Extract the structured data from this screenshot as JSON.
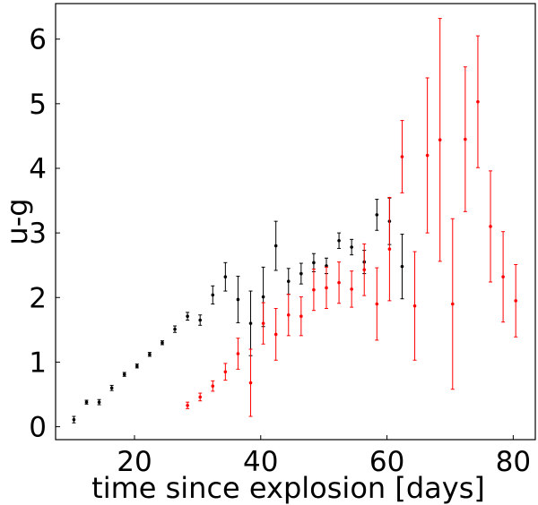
{
  "chart_data": {
    "type": "scatter",
    "xlabel": "time since explosion [days]",
    "ylabel": "u-g",
    "xlim": [
      7.5,
      83.5
    ],
    "ylim": [
      -0.2,
      6.55
    ],
    "xticks": [
      20,
      40,
      60,
      80
    ],
    "yticks": [
      0,
      1,
      2,
      3,
      4,
      5,
      6
    ],
    "grid": false,
    "series": [
      {
        "color": "#000000",
        "points": [
          {
            "x": 10.4,
            "y": 0.11,
            "err": 0.05
          },
          {
            "x": 12.4,
            "y": 0.38,
            "err": 0.03
          },
          {
            "x": 14.4,
            "y": 0.38,
            "err": 0.04
          },
          {
            "x": 16.4,
            "y": 0.6,
            "err": 0.04
          },
          {
            "x": 18.4,
            "y": 0.81,
            "err": 0.03
          },
          {
            "x": 20.4,
            "y": 0.94,
            "err": 0.03
          },
          {
            "x": 22.4,
            "y": 1.12,
            "err": 0.03
          },
          {
            "x": 24.4,
            "y": 1.3,
            "err": 0.03
          },
          {
            "x": 26.4,
            "y": 1.51,
            "err": 0.05
          },
          {
            "x": 28.4,
            "y": 1.71,
            "err": 0.06
          },
          {
            "x": 30.4,
            "y": 1.65,
            "err": 0.08
          },
          {
            "x": 32.4,
            "y": 2.04,
            "err": 0.14
          },
          {
            "x": 34.4,
            "y": 2.32,
            "err": 0.22
          },
          {
            "x": 36.4,
            "y": 1.97,
            "err": 0.36
          },
          {
            "x": 38.4,
            "y": 1.6,
            "err": 0.5
          },
          {
            "x": 40.4,
            "y": 2.01,
            "err": 0.46
          },
          {
            "x": 42.4,
            "y": 2.8,
            "err": 0.38
          },
          {
            "x": 44.4,
            "y": 2.25,
            "err": 0.2
          },
          {
            "x": 46.4,
            "y": 2.37,
            "err": 0.16
          },
          {
            "x": 48.4,
            "y": 2.54,
            "err": 0.14
          },
          {
            "x": 50.4,
            "y": 2.49,
            "err": 0.12
          },
          {
            "x": 52.4,
            "y": 2.88,
            "err": 0.12
          },
          {
            "x": 54.4,
            "y": 2.78,
            "err": 0.12
          },
          {
            "x": 56.4,
            "y": 2.55,
            "err": 0.18
          },
          {
            "x": 58.4,
            "y": 3.28,
            "err": 0.24
          },
          {
            "x": 60.4,
            "y": 3.18,
            "err": 0.36
          },
          {
            "x": 62.4,
            "y": 2.48,
            "err": 0.5
          }
        ]
      },
      {
        "color": "#ff0000",
        "points": [
          {
            "x": 28.4,
            "y": 0.33,
            "err": 0.05
          },
          {
            "x": 30.4,
            "y": 0.46,
            "err": 0.06
          },
          {
            "x": 32.4,
            "y": 0.63,
            "err": 0.08
          },
          {
            "x": 34.4,
            "y": 0.85,
            "err": 0.13
          },
          {
            "x": 36.4,
            "y": 1.13,
            "err": 0.24
          },
          {
            "x": 38.4,
            "y": 0.68,
            "err": 0.52
          },
          {
            "x": 40.4,
            "y": 1.6,
            "err": 0.32
          },
          {
            "x": 42.4,
            "y": 1.43,
            "err": 0.4
          },
          {
            "x": 44.4,
            "y": 1.73,
            "err": 0.32
          },
          {
            "x": 46.4,
            "y": 1.71,
            "err": 0.3
          },
          {
            "x": 48.4,
            "y": 2.12,
            "err": 0.32
          },
          {
            "x": 50.4,
            "y": 2.15,
            "err": 0.32
          },
          {
            "x": 52.4,
            "y": 2.23,
            "err": 0.32
          },
          {
            "x": 54.4,
            "y": 2.13,
            "err": 0.28
          },
          {
            "x": 56.4,
            "y": 2.43,
            "err": 0.4
          },
          {
            "x": 58.4,
            "y": 1.9,
            "err": 0.56
          },
          {
            "x": 60.4,
            "y": 2.75,
            "err": 0.8
          },
          {
            "x": 62.4,
            "y": 4.18,
            "err": 0.56
          },
          {
            "x": 64.4,
            "y": 1.87,
            "err": 0.84
          },
          {
            "x": 66.4,
            "y": 4.2,
            "err": 1.2
          },
          {
            "x": 68.4,
            "y": 4.44,
            "err": 1.88
          },
          {
            "x": 70.4,
            "y": 1.9,
            "err": 1.32
          },
          {
            "x": 72.4,
            "y": 4.45,
            "err": 1.12
          },
          {
            "x": 74.4,
            "y": 5.03,
            "err": 1.02
          },
          {
            "x": 76.4,
            "y": 3.1,
            "err": 0.86
          },
          {
            "x": 78.4,
            "y": 2.32,
            "err": 0.7
          },
          {
            "x": 80.4,
            "y": 1.95,
            "err": 0.56
          }
        ]
      }
    ]
  }
}
